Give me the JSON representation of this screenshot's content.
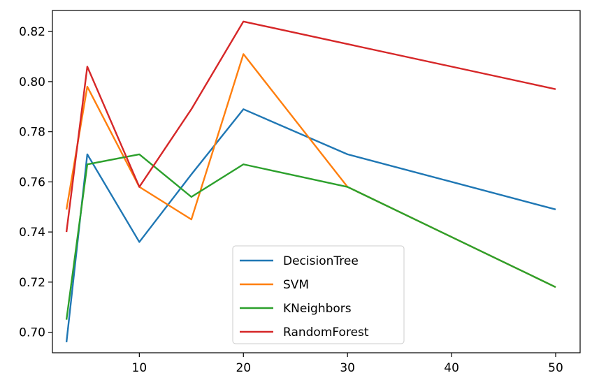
{
  "chart_data": {
    "type": "line",
    "title": "",
    "xlabel": "",
    "ylabel": "",
    "x": [
      3,
      5,
      10,
      15,
      20,
      30,
      50
    ],
    "xlim": [
      1.65,
      52.35
    ],
    "ylim": [
      0.6918,
      0.8284
    ],
    "xticks": [
      10,
      20,
      30,
      40,
      50
    ],
    "xtick_labels": [
      "10",
      "20",
      "30",
      "40",
      "50"
    ],
    "yticks": [
      0.7,
      0.72,
      0.74,
      0.76,
      0.78,
      0.8,
      0.82
    ],
    "ytick_labels": [
      "0.70",
      "0.72",
      "0.74",
      "0.76",
      "0.78",
      "0.80",
      "0.82"
    ],
    "grid": false,
    "legend_position": "bottom-center",
    "series": [
      {
        "name": "DecisionTree",
        "color": "#1f77b4",
        "values": [
          0.696,
          0.771,
          0.736,
          0.763,
          0.789,
          0.771,
          0.749
        ]
      },
      {
        "name": "SVM",
        "color": "#ff7f0e",
        "values": [
          0.749,
          0.798,
          0.758,
          0.745,
          0.811,
          0.758,
          0.718
        ]
      },
      {
        "name": "KNeighbors",
        "color": "#2ca02c",
        "values": [
          0.705,
          0.767,
          0.771,
          0.754,
          0.767,
          0.758,
          0.718
        ]
      },
      {
        "name": "RandomForest",
        "color": "#d62728",
        "values": [
          0.74,
          0.806,
          0.758,
          0.789,
          0.824,
          0.815,
          0.797
        ]
      }
    ]
  }
}
